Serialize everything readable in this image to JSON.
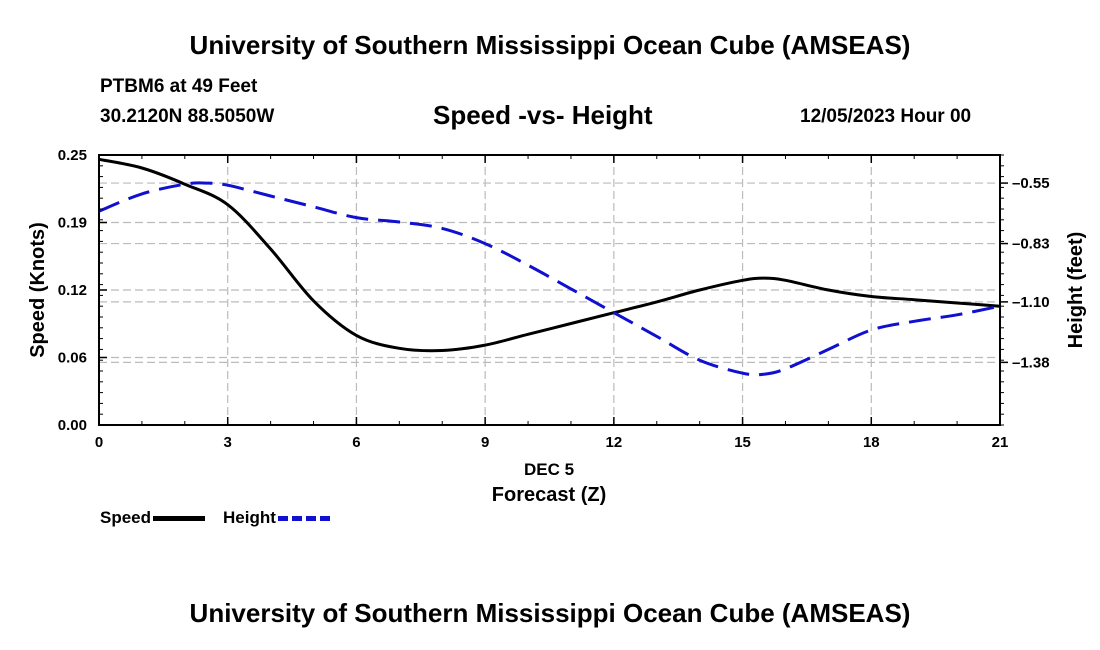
{
  "header": {
    "title": "University of Southern Mississippi Ocean Cube (AMSEAS)",
    "station": "PTBM6 at 49 Feet",
    "coords": "30.2120N  88.5050W",
    "subtitle": "Speed -vs- Height",
    "datetime": "12/05/2023 Hour 00"
  },
  "footer": {
    "title": "University of Southern Mississippi Ocean Cube (AMSEAS)"
  },
  "legend": {
    "speed_label": "Speed",
    "height_label": "Height"
  },
  "chart_data": {
    "type": "line",
    "title": "Speed -vs- Height",
    "xlabel": "Forecast (Z)",
    "xlabel_date": "DEC 5",
    "ylabel": "Speed (Knots)",
    "y2label": "Height (feet)",
    "xlim": [
      0,
      21
    ],
    "ylim": [
      0,
      0.25
    ],
    "y2lim": [
      -0.42,
      -1.67
    ],
    "x_ticks": [
      0,
      3,
      6,
      9,
      12,
      15,
      18,
      21
    ],
    "x_tick_labels": [
      "0",
      "3",
      "6",
      "9",
      "12",
      "15",
      "18",
      "21"
    ],
    "y_ticks": [
      0,
      0.0625,
      0.125,
      0.1875,
      0.25
    ],
    "y_tick_labels": [
      "0.00",
      "0.06",
      "0.12",
      "0.19",
      "0.25"
    ],
    "y2_ticks": [
      -0.55,
      -0.83,
      -1.1,
      -1.38
    ],
    "y2_tick_labels": [
      "-0.55",
      "-0.83",
      "-1.10",
      "-1.38"
    ],
    "grid": true,
    "colors": {
      "speed": "#000000",
      "height": "#1010d0",
      "grid": "#bbbbbb"
    },
    "series": [
      {
        "name": "Speed",
        "axis": "left",
        "style": "solid",
        "x": [
          0,
          1,
          2,
          3,
          4,
          5,
          6,
          7,
          8,
          9,
          10,
          11,
          12,
          13,
          14,
          15,
          15.5,
          16,
          17,
          18,
          19,
          20,
          21
        ],
        "values": [
          0.246,
          0.238,
          0.223,
          0.204,
          0.163,
          0.115,
          0.083,
          0.071,
          0.069,
          0.074,
          0.084,
          0.094,
          0.104,
          0.114,
          0.125,
          0.134,
          0.136,
          0.134,
          0.125,
          0.119,
          0.116,
          0.113,
          0.11
        ]
      },
      {
        "name": "Height",
        "axis": "right",
        "style": "dashed",
        "x": [
          0,
          1,
          2,
          2.5,
          3,
          4,
          5,
          6,
          7,
          8,
          9,
          10,
          11,
          12,
          13,
          14,
          15,
          15.5,
          16,
          17,
          18,
          19,
          20,
          21
        ],
        "values": [
          -0.68,
          -0.6,
          -0.555,
          -0.55,
          -0.56,
          -0.61,
          -0.66,
          -0.71,
          -0.73,
          -0.76,
          -0.83,
          -0.93,
          -1.04,
          -1.15,
          -1.26,
          -1.37,
          -1.43,
          -1.435,
          -1.41,
          -1.32,
          -1.23,
          -1.19,
          -1.16,
          -1.12
        ]
      }
    ]
  }
}
